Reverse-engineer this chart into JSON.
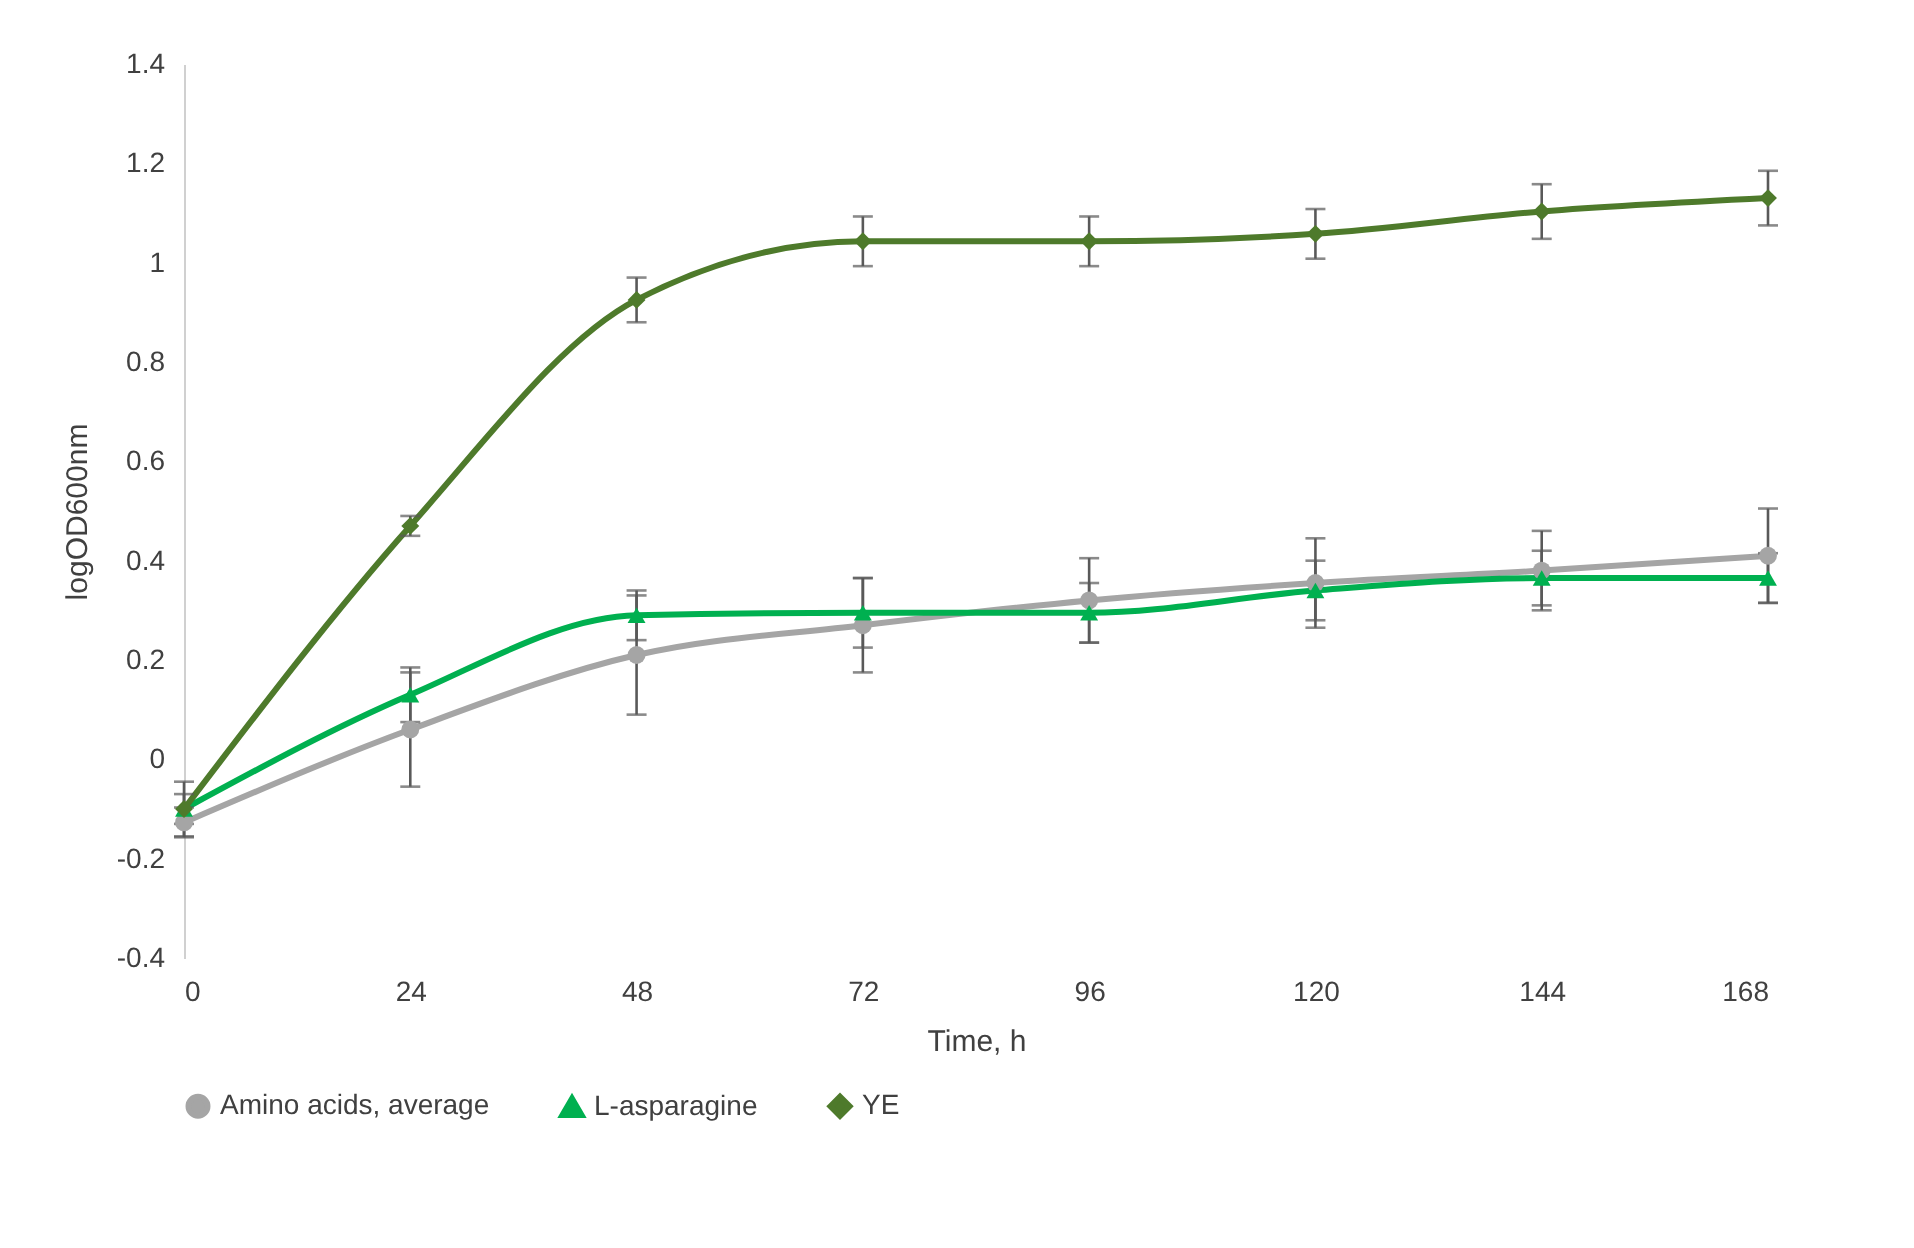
{
  "chart_data": {
    "type": "line",
    "xlabel": "Time, h",
    "ylabel": "logOD600nm",
    "x": [
      0,
      24,
      48,
      72,
      96,
      120,
      144,
      168
    ],
    "xlim": [
      0,
      168
    ],
    "xticks": [
      0,
      24,
      48,
      72,
      96,
      120,
      144,
      168
    ],
    "ylim": [
      -0.4,
      1.4
    ],
    "yticks": [
      -0.4,
      -0.2,
      0,
      0.2,
      0.4,
      0.6,
      0.8,
      1,
      1.2,
      1.4
    ],
    "grid": false,
    "legend": "bottom",
    "series": [
      {
        "name": "Amino acids, average",
        "color": "#a5a5a5",
        "marker": "circle",
        "values": [
          -0.127,
          0.06,
          0.21,
          0.27,
          0.32,
          0.355,
          0.38,
          0.41
        ],
        "errors": [
          0.03,
          0.115,
          0.12,
          0.095,
          0.085,
          0.09,
          0.08,
          0.095
        ]
      },
      {
        "name": "L-asparagine",
        "color": "#00b050",
        "marker": "triangle",
        "values": [
          -0.1,
          0.13,
          0.29,
          0.295,
          0.295,
          0.34,
          0.365,
          0.365
        ],
        "errors": [
          0.03,
          0.055,
          0.05,
          0.07,
          0.06,
          0.06,
          0.055,
          0.05
        ]
      },
      {
        "name": "YE",
        "color": "#4e7a2b",
        "marker": "diamond",
        "values": [
          -0.1,
          0.47,
          0.925,
          1.043,
          1.043,
          1.058,
          1.103,
          1.13
        ],
        "errors": [
          0.055,
          0.02,
          0.045,
          0.05,
          0.05,
          0.05,
          0.055,
          0.055
        ]
      }
    ]
  }
}
